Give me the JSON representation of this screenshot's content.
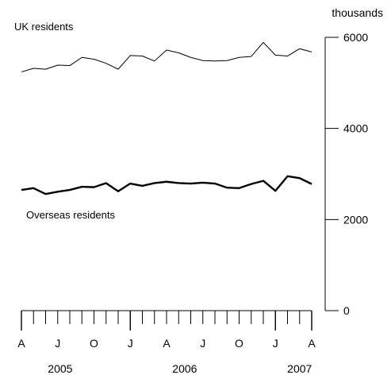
{
  "chart_data": {
    "type": "line",
    "title": "",
    "unit_label": "thousands",
    "ylim": [
      0,
      6000
    ],
    "yticks": [
      0,
      2000,
      4000,
      6000
    ],
    "grid": false,
    "month_labels": [
      "A",
      "J",
      "O",
      "J",
      "A",
      "J",
      "O",
      "J",
      "A"
    ],
    "year_labels": [
      "2005",
      "2006",
      "2007"
    ],
    "x": [
      "2005-04",
      "2005-05",
      "2005-06",
      "2005-07",
      "2005-08",
      "2005-09",
      "2005-10",
      "2005-11",
      "2005-12",
      "2006-01",
      "2006-02",
      "2006-03",
      "2006-04",
      "2006-05",
      "2006-06",
      "2006-07",
      "2006-08",
      "2006-09",
      "2006-10",
      "2006-11",
      "2006-12",
      "2007-01",
      "2007-02",
      "2007-03",
      "2007-04"
    ],
    "series": [
      {
        "name": "UK residents",
        "values": [
          5240,
          5320,
          5300,
          5390,
          5380,
          5560,
          5520,
          5430,
          5300,
          5600,
          5590,
          5480,
          5720,
          5660,
          5560,
          5490,
          5480,
          5490,
          5560,
          5580,
          5890,
          5610,
          5590,
          5750,
          5680
        ],
        "color": "#000000"
      },
      {
        "name": "Overseas residents",
        "values": [
          2650,
          2690,
          2560,
          2610,
          2650,
          2720,
          2710,
          2800,
          2620,
          2790,
          2740,
          2800,
          2830,
          2800,
          2790,
          2810,
          2790,
          2700,
          2690,
          2780,
          2850,
          2630,
          2950,
          2910,
          2780
        ],
        "color": "#000000"
      }
    ]
  }
}
